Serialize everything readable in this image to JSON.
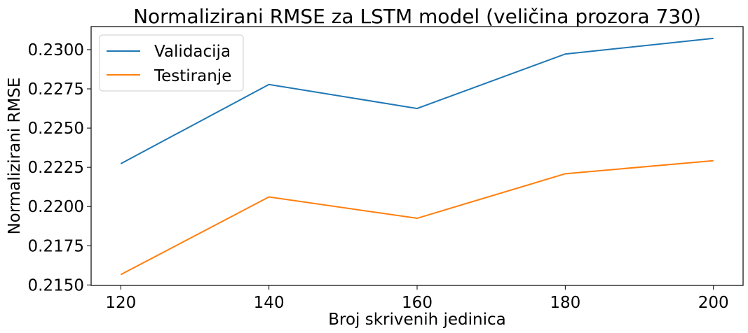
{
  "chart_data": {
    "type": "line",
    "title": "Normalizirani RMSE za LSTM model (veličina prozora 730)",
    "xlabel": "Broj skrivenih jedinica",
    "ylabel": "Normalizirani RMSE",
    "x": [
      120,
      140,
      160,
      180,
      200
    ],
    "x_ticks": [
      "120",
      "140",
      "160",
      "180",
      "200"
    ],
    "y_ticks": [
      "0.2150",
      "0.2175",
      "0.2200",
      "0.2225",
      "0.2250",
      "0.2275",
      "0.2300"
    ],
    "y_tick_values": [
      0.215,
      0.2175,
      0.22,
      0.2225,
      0.225,
      0.2275,
      0.23
    ],
    "xlim": [
      116,
      204
    ],
    "ylim": [
      0.21497,
      0.23147
    ],
    "grid": false,
    "legend_position": "top-left",
    "series": [
      {
        "name": "Validacija",
        "color": "#1f77b4",
        "values": [
          0.22273,
          0.22778,
          0.22625,
          0.22972,
          0.23072
        ]
      },
      {
        "name": "Testiranje",
        "color": "#ff7f0e",
        "values": [
          0.21566,
          0.22061,
          0.21925,
          0.22209,
          0.22292
        ]
      }
    ]
  }
}
